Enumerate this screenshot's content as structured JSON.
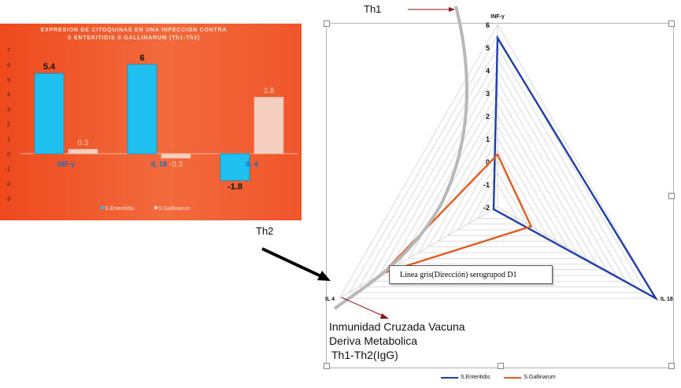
{
  "chart_data": [
    {
      "type": "bar",
      "title": "EXPRESION DE CITOQUINAS EN UNA INFECCION CONTRA S ENTERITIDIS S GALLINARUM (Th1-Th2)",
      "title_lines": [
        "EXPRESION DE CITOQUINAS EN UNA INFECCION CONTRA",
        "S ENTERITIDIS S GALLINARUM (Th1-Th2)"
      ],
      "categories": [
        "INF-γ",
        "IL 18",
        "IL 4"
      ],
      "ylim": [
        -3,
        7
      ],
      "yticks": [
        "7",
        "6",
        "5",
        "4",
        "3",
        "2",
        "1",
        "0",
        "-1",
        "-2",
        "-3"
      ],
      "series": [
        {
          "name": "S.Enteritidis",
          "values": [
            5.4,
            6,
            -1.8
          ],
          "labels": [
            "5.4",
            "6",
            "-1.8"
          ],
          "color": "#1ec0f0"
        },
        {
          "name": "S.Gallinarum",
          "values": [
            0.3,
            -0.3,
            3.8
          ],
          "labels": [
            "0.3",
            "-0.3",
            "3.8"
          ],
          "color": "#f6cfc0"
        }
      ],
      "legend": "bottom",
      "background": "#f05a2c"
    },
    {
      "type": "radar",
      "axes": [
        "INF-γ",
        "IL 18",
        "IL 4"
      ],
      "rlim": [
        -2,
        6
      ],
      "ticks": [
        "6",
        "5",
        "4",
        "3",
        "2",
        "1",
        "0",
        "-1",
        "-2"
      ],
      "series": [
        {
          "name": "S.Enteritidis",
          "values": [
            5.4,
            6,
            -1.8
          ],
          "color": "#1f3fa8"
        },
        {
          "name": "S.Gallinarum",
          "values": [
            0.3,
            -0.3,
            3.8
          ],
          "color": "#e35b1f"
        }
      ],
      "legend": "bottom",
      "grid": true
    }
  ],
  "annotations": {
    "th1": "Th1",
    "th2": "Th2",
    "note": "Línea gris(Dirección) serogrupod D1",
    "line1": "Inmunidad Cruzada Vacuna",
    "line2": "Deriva Metabolica",
    "line3": "Th1-Th2(IgG)"
  }
}
